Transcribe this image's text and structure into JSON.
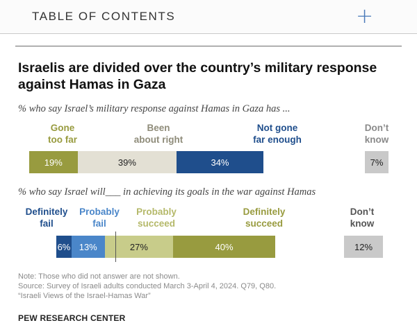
{
  "toc": {
    "label": "TABLE OF CONTENTS",
    "expand_icon": "+"
  },
  "headline": "Israelis are divided over the country’s military response against Hamas in Gaza",
  "colors": {
    "olive": "#989b3f",
    "light_olive": "#c8cc8a",
    "beige": "#e3e0d4",
    "navy": "#1f4e8c",
    "blue": "#4a86c9",
    "gray": "#c9c9c9"
  },
  "chart_data": [
    {
      "type": "bar",
      "orientation": "horizontal-stacked",
      "subtitle": "% who say Israel’s military response against Hamas in Gaza has ...",
      "categories": [
        "Gone too far",
        "Been about right",
        "Not gone far enough",
        "Don’t know"
      ],
      "labels": [
        [
          "Gone",
          "too far"
        ],
        [
          "Been",
          "about right"
        ],
        [
          "Not gone",
          "far enough"
        ],
        [
          "Don’t",
          "know"
        ]
      ],
      "values": [
        19,
        39,
        34,
        7
      ],
      "value_labels": [
        "19%",
        "39%",
        "34%",
        "7%"
      ]
    },
    {
      "type": "bar",
      "orientation": "horizontal-stacked",
      "subtitle": "% who say Israel will___ in achieving its goals in the war against Hamas",
      "categories": [
        "Definitely fail",
        "Probably fail",
        "Probably succeed",
        "Definitely succeed",
        "Don’t know"
      ],
      "labels": [
        [
          "Definitely",
          "fail"
        ],
        [
          "Probably",
          "fail"
        ],
        [
          "Probably",
          "succeed"
        ],
        [
          "Definitely",
          "succeed"
        ],
        [
          "Don’t",
          "know"
        ]
      ],
      "values": [
        6,
        13,
        27,
        40,
        12
      ],
      "value_labels": [
        "6%",
        "13%",
        "27%",
        "40%",
        "12%"
      ]
    }
  ],
  "note": {
    "line1": "Note: Those who did not answer are not shown.",
    "line2": "Source: Survey of Israeli adults conducted March 3-April 4, 2024. Q79, Q80.",
    "line3": "“Israeli Views of the Israel-Hamas War”"
  },
  "brand": "PEW RESEARCH CENTER"
}
